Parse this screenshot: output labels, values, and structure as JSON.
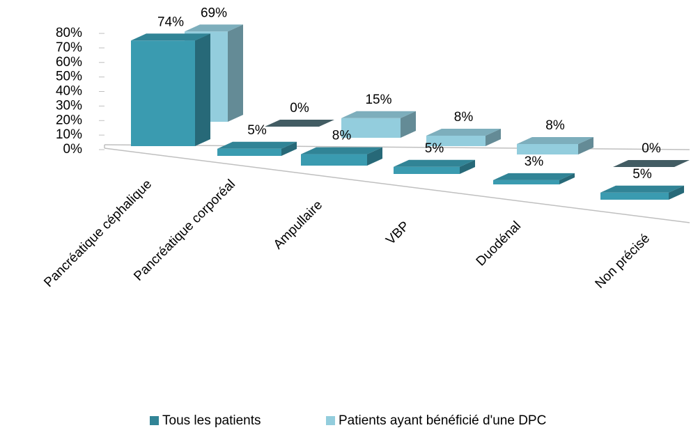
{
  "chart_data": {
    "type": "bar3d",
    "categories": [
      "Pancréatique céphalique",
      "Pancréatique corporéal",
      "Ampullaire",
      "VBP",
      "Duodénal",
      "Non précisé"
    ],
    "series": [
      {
        "name": "Tous les patients",
        "color": "#3a9bb0",
        "values": [
          74,
          5,
          8,
          5,
          3,
          5
        ],
        "value_labels": [
          "74%",
          "5%",
          "8%",
          "5%",
          "3%",
          "5%"
        ]
      },
      {
        "name": "Patients ayant bénéficié d'une DPC",
        "color": "#93cddd",
        "values": [
          69,
          0,
          15,
          8,
          8,
          0
        ],
        "value_labels": [
          "69%",
          "0%",
          "15%",
          "8%",
          "8%",
          "0%"
        ]
      }
    ],
    "ylim": [
      0,
      80
    ],
    "yticks": [
      {
        "value": 0,
        "label": "0%"
      },
      {
        "value": 10,
        "label": "10%"
      },
      {
        "value": 20,
        "label": "20%"
      },
      {
        "value": 30,
        "label": "30%"
      },
      {
        "value": 40,
        "label": "40%"
      },
      {
        "value": 50,
        "label": "50%"
      },
      {
        "value": 60,
        "label": "60%"
      },
      {
        "value": 70,
        "label": "70%"
      },
      {
        "value": 80,
        "label": "80%"
      }
    ],
    "legend": "bottom"
  }
}
